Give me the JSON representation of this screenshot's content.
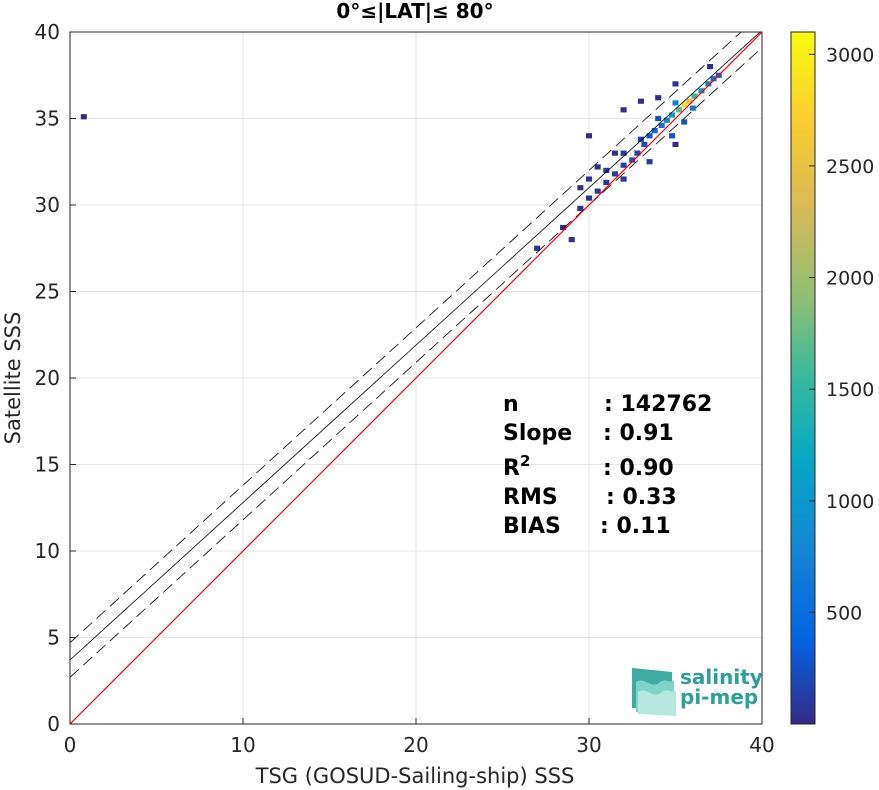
{
  "chart_data": {
    "type": "heatmap",
    "title": "0°≤|LAT|≤ 80°",
    "xlabel": "TSG (GOSUD-Sailing-ship) SSS",
    "ylabel": "Satellite SSS",
    "xlim": [
      0,
      40
    ],
    "ylim": [
      0,
      40
    ],
    "x_ticks": [
      "0",
      "10",
      "20",
      "30",
      "40"
    ],
    "y_ticks": [
      "0",
      "5",
      "10",
      "15",
      "20",
      "25",
      "30",
      "35",
      "40"
    ],
    "grid": true,
    "colormap": "parula",
    "colorbar": {
      "range": [
        0,
        3100
      ],
      "ticks": [
        "500",
        "1000",
        "1500",
        "2000",
        "2500",
        "3000"
      ]
    },
    "one_to_one_line": {
      "color": "#ff0000"
    },
    "regression_line": {
      "slope": 0.91,
      "intercept": 3.7
    },
    "regression_bounds": {
      "offset": 1.0,
      "style": "dashed"
    },
    "density_points": [
      {
        "x": 35.5,
        "y": 35.8,
        "v": 2900
      },
      {
        "x": 35.8,
        "y": 36.0,
        "v": 2400
      },
      {
        "x": 35.2,
        "y": 35.5,
        "v": 1700
      },
      {
        "x": 36.1,
        "y": 36.3,
        "v": 1500
      },
      {
        "x": 34.8,
        "y": 35.2,
        "v": 1100
      },
      {
        "x": 36.5,
        "y": 36.6,
        "v": 1000
      },
      {
        "x": 34.5,
        "y": 34.9,
        "v": 800
      },
      {
        "x": 36.9,
        "y": 37.0,
        "v": 700
      },
      {
        "x": 37.2,
        "y": 37.3,
        "v": 500
      },
      {
        "x": 34.2,
        "y": 34.6,
        "v": 600
      },
      {
        "x": 33.8,
        "y": 34.3,
        "v": 450
      },
      {
        "x": 37.5,
        "y": 37.5,
        "v": 350
      },
      {
        "x": 33.5,
        "y": 34.0,
        "v": 300
      },
      {
        "x": 35.0,
        "y": 35.9,
        "v": 700
      },
      {
        "x": 36.0,
        "y": 35.6,
        "v": 600
      },
      {
        "x": 34.0,
        "y": 35.0,
        "v": 250
      },
      {
        "x": 33.2,
        "y": 33.5,
        "v": 250
      },
      {
        "x": 32.8,
        "y": 33.0,
        "v": 200
      },
      {
        "x": 32.5,
        "y": 32.6,
        "v": 180
      },
      {
        "x": 32.0,
        "y": 32.3,
        "v": 150
      },
      {
        "x": 31.5,
        "y": 31.8,
        "v": 130
      },
      {
        "x": 31.0,
        "y": 31.3,
        "v": 100
      },
      {
        "x": 30.5,
        "y": 30.8,
        "v": 80
      },
      {
        "x": 30.0,
        "y": 30.4,
        "v": 60
      },
      {
        "x": 29.5,
        "y": 29.8,
        "v": 50
      },
      {
        "x": 34.8,
        "y": 34.0,
        "v": 300
      },
      {
        "x": 35.5,
        "y": 34.8,
        "v": 250
      },
      {
        "x": 33.0,
        "y": 33.8,
        "v": 150
      },
      {
        "x": 32.0,
        "y": 33.0,
        "v": 120
      },
      {
        "x": 31.0,
        "y": 32.0,
        "v": 80
      },
      {
        "x": 30.0,
        "y": 31.5,
        "v": 60
      },
      {
        "x": 33.5,
        "y": 32.5,
        "v": 100
      },
      {
        "x": 32.0,
        "y": 31.5,
        "v": 100
      },
      {
        "x": 27.0,
        "y": 27.5,
        "v": 60
      },
      {
        "x": 28.5,
        "y": 28.7,
        "v": 50
      },
      {
        "x": 29.0,
        "y": 28.0,
        "v": 40
      },
      {
        "x": 30.5,
        "y": 32.2,
        "v": 30
      },
      {
        "x": 29.5,
        "y": 31.0,
        "v": 30
      },
      {
        "x": 31.5,
        "y": 33.0,
        "v": 40
      },
      {
        "x": 34.0,
        "y": 36.2,
        "v": 30
      },
      {
        "x": 35.0,
        "y": 37.0,
        "v": 30
      },
      {
        "x": 30.0,
        "y": 34.0,
        "v": 20
      },
      {
        "x": 32.0,
        "y": 35.5,
        "v": 20
      },
      {
        "x": 35.0,
        "y": 33.5,
        "v": 20
      },
      {
        "x": 33.0,
        "y": 36.0,
        "v": 20
      },
      {
        "x": 37.0,
        "y": 38.0,
        "v": 30
      },
      {
        "x": 0.8,
        "y": 35.1,
        "v": 20
      }
    ],
    "stats": [
      {
        "label": "n",
        "value": ": 142762"
      },
      {
        "label": "Slope",
        "value": ": 0.91"
      },
      {
        "label": "R",
        "sup": "2",
        "value": ": 0.90"
      },
      {
        "label": "RMS",
        "value": ": 0.33"
      },
      {
        "label": "BIAS",
        "value": ": 0.11"
      }
    ]
  },
  "logo": {
    "line1": "salinity",
    "line2": "pi-mep"
  },
  "colors": {
    "reference_line": "#ff0000",
    "regression": "#000000",
    "logo": "#2aa198",
    "grid": "#e5e5e5"
  }
}
